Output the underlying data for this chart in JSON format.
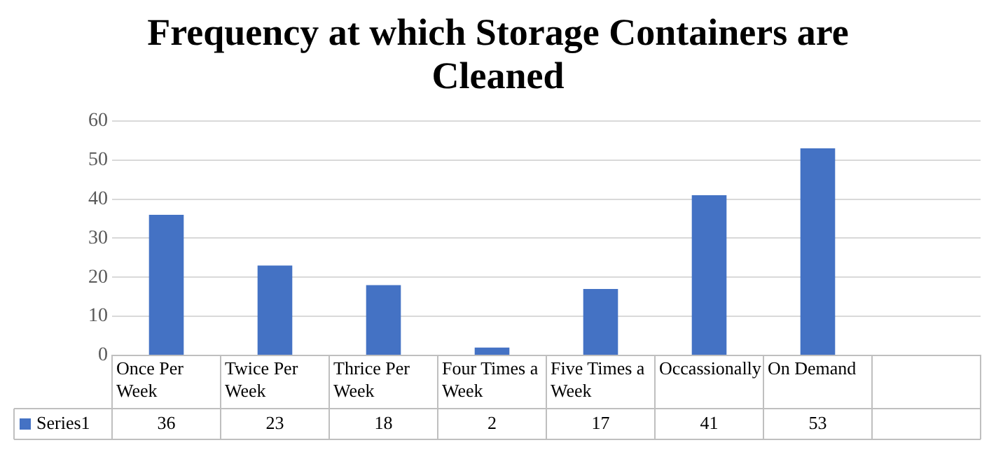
{
  "chart_data": {
    "type": "bar",
    "title": "Frequency at which Storage Containers are Cleaned",
    "categories": [
      "Once Per Week",
      "Twice Per Week",
      "Thrice Per Week",
      "Four Times a Week",
      "Five Times a Week",
      "Occassionally",
      "On Demand",
      null
    ],
    "series": [
      {
        "name": "Series1",
        "color": "#4472c4",
        "values": [
          36,
          23,
          18,
          2,
          17,
          41,
          53,
          null
        ]
      }
    ],
    "ylim": [
      0,
      60
    ],
    "yticks": [
      0,
      10,
      20,
      30,
      40,
      50,
      60
    ],
    "grid": "y",
    "legend": "bottom",
    "data_labels": true
  }
}
